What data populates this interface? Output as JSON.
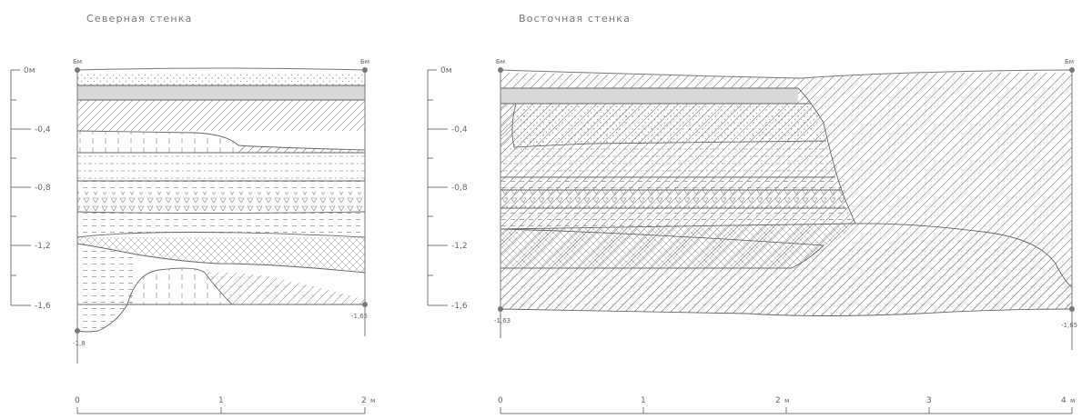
{
  "north_wall": {
    "title": "Северная стенка",
    "corner_left": "Бм",
    "corner_right": "Бм",
    "depth_ticks": [
      "0м",
      "-0,4",
      "-0,8",
      "-1,2",
      "-1,6"
    ],
    "bottom_left_mark": "-1,8",
    "bottom_right_mark": "-1,65",
    "scale_ticks": [
      "0",
      "1",
      "2"
    ],
    "scale_unit": "м"
  },
  "east_wall": {
    "title": "Восточная стенка",
    "corner_left": "Бм",
    "corner_right": "Бм",
    "depth_ticks": [
      "0м",
      "-0,4",
      "-0,8",
      "-1,2",
      "-1,6"
    ],
    "bottom_left_mark": "-1,63",
    "bottom_right_mark": "-1,65",
    "scale_ticks": [
      "0",
      "1",
      "2",
      "3",
      "4"
    ],
    "scale_unit": "м"
  }
}
